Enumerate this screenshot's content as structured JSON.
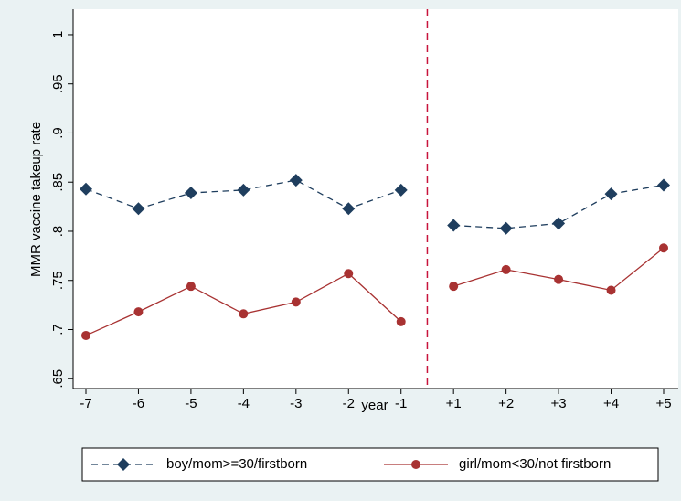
{
  "chart_data": {
    "type": "line",
    "y_label": "MMR vaccine takeup rate",
    "x_label": "year",
    "categories": [
      "-7",
      "-6",
      "-5",
      "-4",
      "-3",
      "-2",
      "-1",
      "+1",
      "+2",
      "+3",
      "+4",
      "+5"
    ],
    "series": [
      {
        "name": "boy/mom>=30/firstborn",
        "color": "#1f3e5e",
        "marker": "diamond",
        "dash": "dashed",
        "values": [
          0.843,
          0.823,
          0.839,
          0.842,
          0.852,
          0.823,
          0.842,
          0.806,
          0.803,
          0.808,
          0.838,
          0.847
        ]
      },
      {
        "name": "girl/mom<30/not firstborn",
        "color": "#a83232",
        "marker": "circle",
        "dash": "solid",
        "values": [
          0.694,
          0.718,
          0.744,
          0.716,
          0.728,
          0.757,
          0.708,
          0.744,
          0.761,
          0.751,
          0.74,
          0.783
        ]
      }
    ],
    "reference_line": {
      "between": [
        "-1",
        "+1"
      ],
      "color": "#c8143c",
      "style": "dashed"
    },
    "ylim": [
      0.64,
      1.026
    ],
    "yticks": [
      {
        "value": 0.65,
        "label": ".65"
      },
      {
        "value": 0.7,
        "label": ".7"
      },
      {
        "value": 0.75,
        "label": ".75"
      },
      {
        "value": 0.8,
        "label": ".8"
      },
      {
        "value": 0.85,
        "label": ".85"
      },
      {
        "value": 0.9,
        "label": ".9"
      },
      {
        "value": 0.95,
        "label": ".95"
      },
      {
        "value": 1,
        "label": "1"
      }
    ],
    "grid": false,
    "legend": "bottom"
  }
}
